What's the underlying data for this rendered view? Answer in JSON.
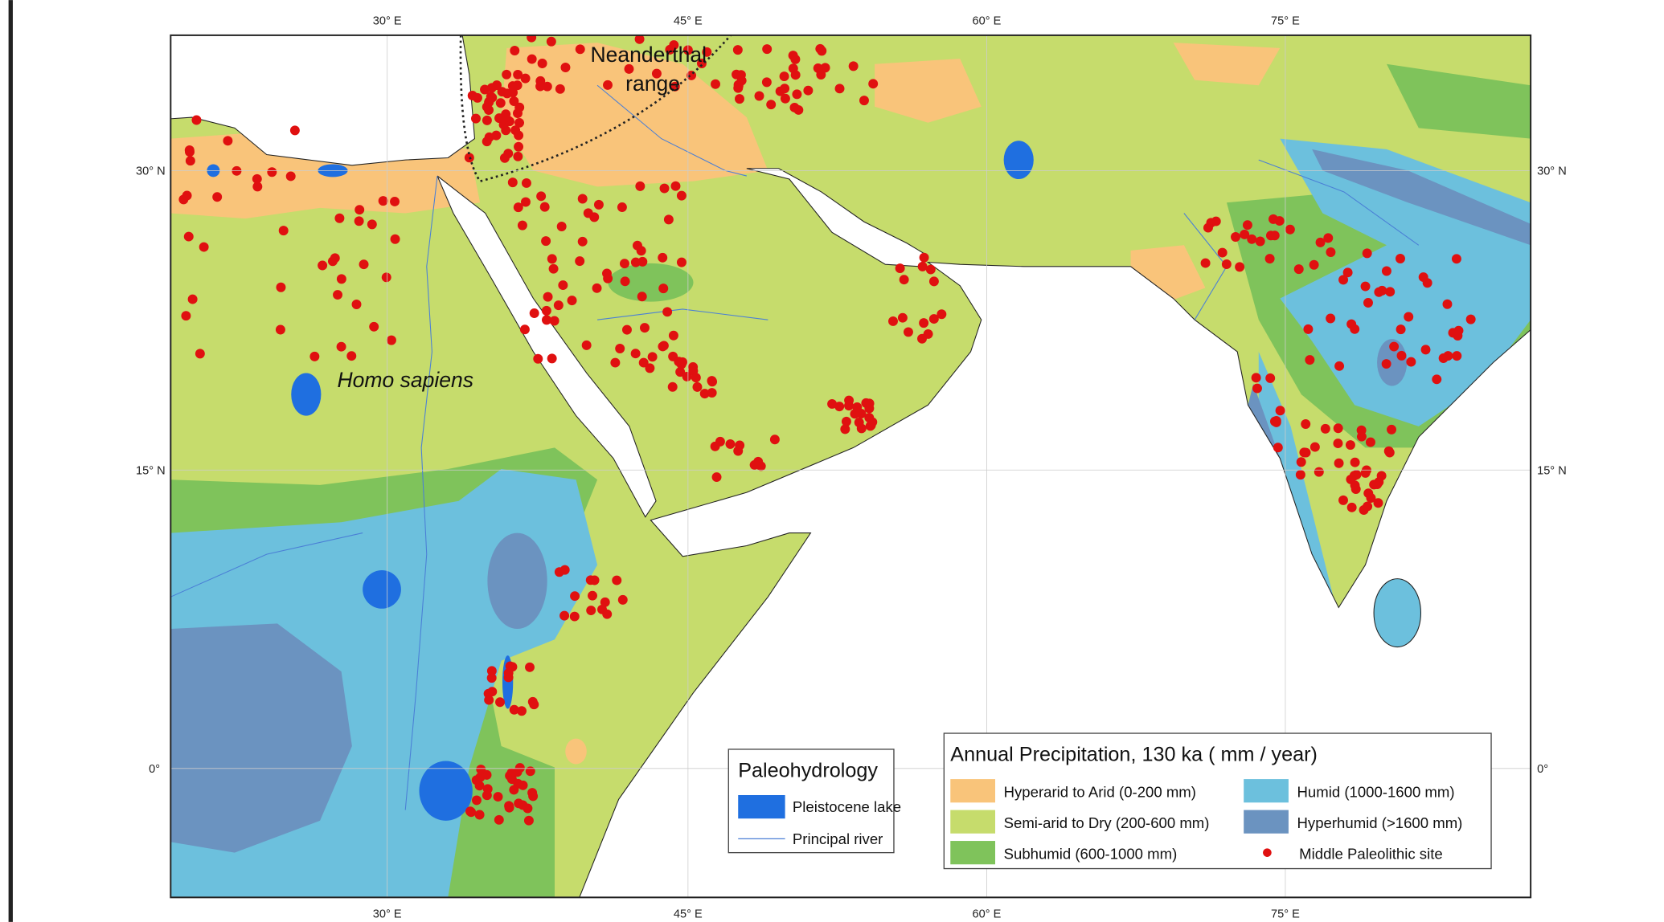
{
  "map": {
    "graticule": {
      "top": [
        "30° E",
        "45° E",
        "60° E",
        "75° E"
      ],
      "bottom": [
        "30° E",
        "45° E",
        "60° E",
        "75° E"
      ],
      "left": [
        "30° N",
        "15° N",
        "0°"
      ],
      "right": [
        "30° N",
        "15° N",
        "0°"
      ]
    },
    "labels": {
      "neanderthal": [
        "Neanderthal",
        "range"
      ],
      "homo_sapiens": "Homo sapiens"
    },
    "legend_paleohydrology": {
      "title": "Paleohydrology",
      "items": [
        "Pleistocene lake",
        "Principal river"
      ]
    },
    "legend_precipitation": {
      "title": "Annual Precipitation, 130 ka ( mm / year)",
      "items": [
        "Hyperarid to Arid (0-200 mm)",
        "Semi-arid to Dry (200-600 mm)",
        "Subhumid (600-1000 mm)",
        "Humid (1000-1600 mm)",
        "Hyperhumid (>1600 mm)",
        "Middle Paleolithic site"
      ]
    }
  }
}
